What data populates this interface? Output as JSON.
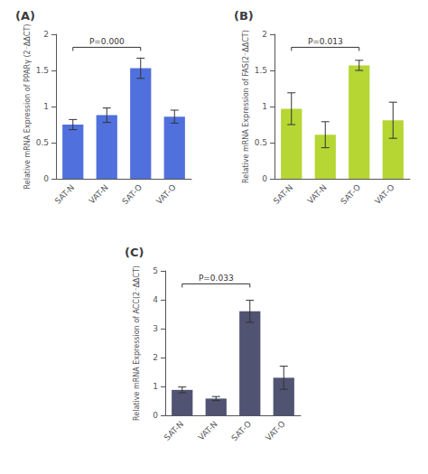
{
  "chart_data": [
    {
      "type": "bar",
      "title": "(A)",
      "ylabel": "Relative mRNA Expression of PPARγ (2⁻ΔΔCT)",
      "categories": [
        "SAT-N",
        "VAT-N",
        "SAT-O",
        "VAT-O"
      ],
      "values": [
        0.75,
        0.88,
        1.53,
        0.86
      ],
      "errors": [
        0.07,
        0.1,
        0.14,
        0.09
      ],
      "ylim": [
        0,
        2.0
      ],
      "yticks": [
        0.0,
        0.5,
        1.0,
        1.5,
        2.0
      ],
      "grid": false,
      "annotations": [
        {
          "text": "P=0.000",
          "from": "SAT-N",
          "to": "SAT-O",
          "y": 1.82
        }
      ]
    },
    {
      "type": "bar",
      "title": "(B)",
      "ylabel": "Relative mRNA Expression of FAS(2⁻ΔΔCT)",
      "categories": [
        "SAT-N",
        "VAT-N",
        "SAT-O",
        "VAT-O"
      ],
      "values": [
        0.97,
        0.61,
        1.57,
        0.81
      ],
      "errors": [
        0.22,
        0.18,
        0.07,
        0.25
      ],
      "ylim": [
        0,
        2.0
      ],
      "yticks": [
        0.0,
        0.5,
        1.0,
        1.5,
        2.0
      ],
      "grid": false,
      "annotations": [
        {
          "text": "P=0.013",
          "from": "SAT-N",
          "to": "SAT-O",
          "y": 1.82
        }
      ]
    },
    {
      "type": "bar",
      "title": "(C)",
      "ylabel": "Relative mRNA Expression of ACC(2⁻ΔΔCT)",
      "categories": [
        "SAT-N",
        "VAT-N",
        "SAT-O",
        "VAT-O"
      ],
      "values": [
        0.88,
        0.58,
        3.6,
        1.3
      ],
      "errors": [
        0.1,
        0.07,
        0.38,
        0.4
      ],
      "ylim": [
        0,
        5
      ],
      "yticks": [
        0,
        1,
        2,
        3,
        4,
        5
      ],
      "grid": false,
      "annotations": [
        {
          "text": "P=0.033",
          "from": "SAT-N",
          "to": "SAT-O",
          "y": 4.55
        }
      ]
    }
  ]
}
